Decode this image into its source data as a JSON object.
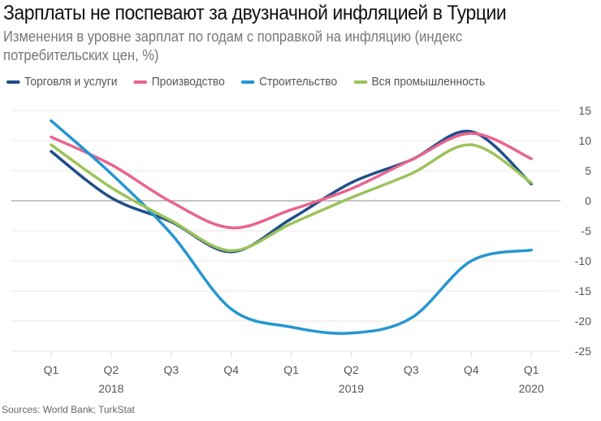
{
  "chart_data": {
    "type": "line",
    "title": "Зарплаты не поспевают за двузначной инфляцией в Турции",
    "subtitle": "Изменения в уровне зарплат по годам с поправкой на инфляцию (индекс потребительских цен, %)",
    "categories": [
      "Q1",
      "Q2",
      "Q3",
      "Q4",
      "Q1",
      "Q2",
      "Q3",
      "Q4",
      "Q1"
    ],
    "years": [
      {
        "label": "2018",
        "at": 1
      },
      {
        "label": "2019",
        "at": 5
      },
      {
        "label": "2020",
        "at": 8
      }
    ],
    "ylim": [
      -25,
      15
    ],
    "yticks": [
      15,
      10,
      5,
      0,
      -5,
      -10,
      -15,
      -20,
      -25
    ],
    "grid": "horizontal",
    "legend": "top-left",
    "series": [
      {
        "name": "Торговля и услуги",
        "color": "#1f4e8a",
        "values": [
          8.2,
          0.5,
          -3.5,
          -8.5,
          -3,
          3,
          6.8,
          11.5,
          2.8
        ]
      },
      {
        "name": "Производство",
        "color": "#e8648e",
        "values": [
          10.6,
          6,
          -0.2,
          -4.5,
          -1.5,
          2,
          6.8,
          11.2,
          7
        ]
      },
      {
        "name": "Строительство",
        "color": "#2596d1",
        "values": [
          13.3,
          4.5,
          -5.5,
          -18,
          -21,
          -22,
          -19.5,
          -10,
          -8.2
        ]
      },
      {
        "name": "Вся промышленность",
        "color": "#9cc35a",
        "values": [
          9.3,
          2.2,
          -3.3,
          -8.3,
          -3.8,
          0.5,
          4.5,
          9.3,
          3
        ]
      }
    ],
    "source": "Sources: World Bank; TurkStat"
  }
}
